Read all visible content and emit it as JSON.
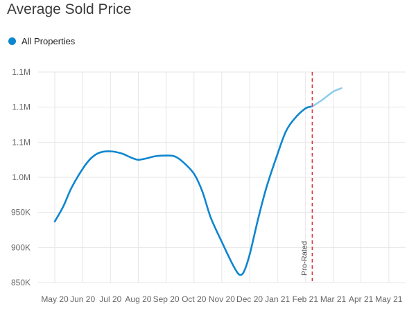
{
  "chart_data": {
    "type": "line",
    "title": "Average Sold Price",
    "colors": {
      "primary": "#0d86d0",
      "projected": "#8fcdee",
      "marker": "#d9363e",
      "grid": "#e6e6e6"
    },
    "legend": [
      {
        "label": "All Properties",
        "color": "#0d86d0"
      }
    ],
    "legend_placement": "top-left",
    "grid": true,
    "categories": [
      "May 20",
      "Jun 20",
      "Jul 20",
      "Aug 20",
      "Sep 20",
      "Oct 20",
      "Nov 20",
      "Dec 20",
      "Jan 21",
      "Feb 21",
      "Mar 21",
      "Apr 21",
      "May 21"
    ],
    "y_ticks": [
      {
        "value": 850000,
        "label": "850K"
      },
      {
        "value": 900000,
        "label": "900K"
      },
      {
        "value": 950000,
        "label": "950K"
      },
      {
        "value": 1000000,
        "label": "1.0M"
      },
      {
        "value": 1050000,
        "label": "1.1M"
      },
      {
        "value": 1100000,
        "label": "1.1M"
      },
      {
        "value": 1150000,
        "label": "1.1M"
      }
    ],
    "ylim": [
      850000,
      1150000
    ],
    "series": [
      {
        "name": "All Properties",
        "points": [
          {
            "x": 0.0,
            "y": 937000
          },
          {
            "x": 0.3,
            "y": 958000
          },
          {
            "x": 0.6,
            "y": 985000
          },
          {
            "x": 1.0,
            "y": 1012000
          },
          {
            "x": 1.3,
            "y": 1027000
          },
          {
            "x": 1.6,
            "y": 1035000
          },
          {
            "x": 2.0,
            "y": 1037000
          },
          {
            "x": 2.4,
            "y": 1034000
          },
          {
            "x": 2.75,
            "y": 1028000
          },
          {
            "x": 3.0,
            "y": 1025000
          },
          {
            "x": 3.3,
            "y": 1027000
          },
          {
            "x": 3.6,
            "y": 1030000
          },
          {
            "x": 4.0,
            "y": 1031000
          },
          {
            "x": 4.3,
            "y": 1030000
          },
          {
            "x": 4.6,
            "y": 1022000
          },
          {
            "x": 5.0,
            "y": 1005000
          },
          {
            "x": 5.3,
            "y": 980000
          },
          {
            "x": 5.6,
            "y": 943000
          },
          {
            "x": 6.0,
            "y": 908000
          },
          {
            "x": 6.3,
            "y": 883000
          },
          {
            "x": 6.5,
            "y": 868000
          },
          {
            "x": 6.65,
            "y": 861000
          },
          {
            "x": 6.8,
            "y": 866000
          },
          {
            "x": 7.0,
            "y": 890000
          },
          {
            "x": 7.3,
            "y": 940000
          },
          {
            "x": 7.6,
            "y": 985000
          },
          {
            "x": 8.0,
            "y": 1033000
          },
          {
            "x": 8.3,
            "y": 1065000
          },
          {
            "x": 8.6,
            "y": 1083000
          },
          {
            "x": 9.0,
            "y": 1098000
          },
          {
            "x": 9.25,
            "y": 1101000
          }
        ]
      },
      {
        "name": "",
        "projected": true,
        "points": [
          {
            "x": 9.25,
            "y": 1101000
          },
          {
            "x": 9.6,
            "y": 1110000
          },
          {
            "x": 10.0,
            "y": 1122000
          },
          {
            "x": 10.3,
            "y": 1127000
          }
        ]
      }
    ],
    "annotations": [
      {
        "x": 9.25,
        "label": "Pro-Rated",
        "style": "dashed-vertical"
      }
    ]
  }
}
